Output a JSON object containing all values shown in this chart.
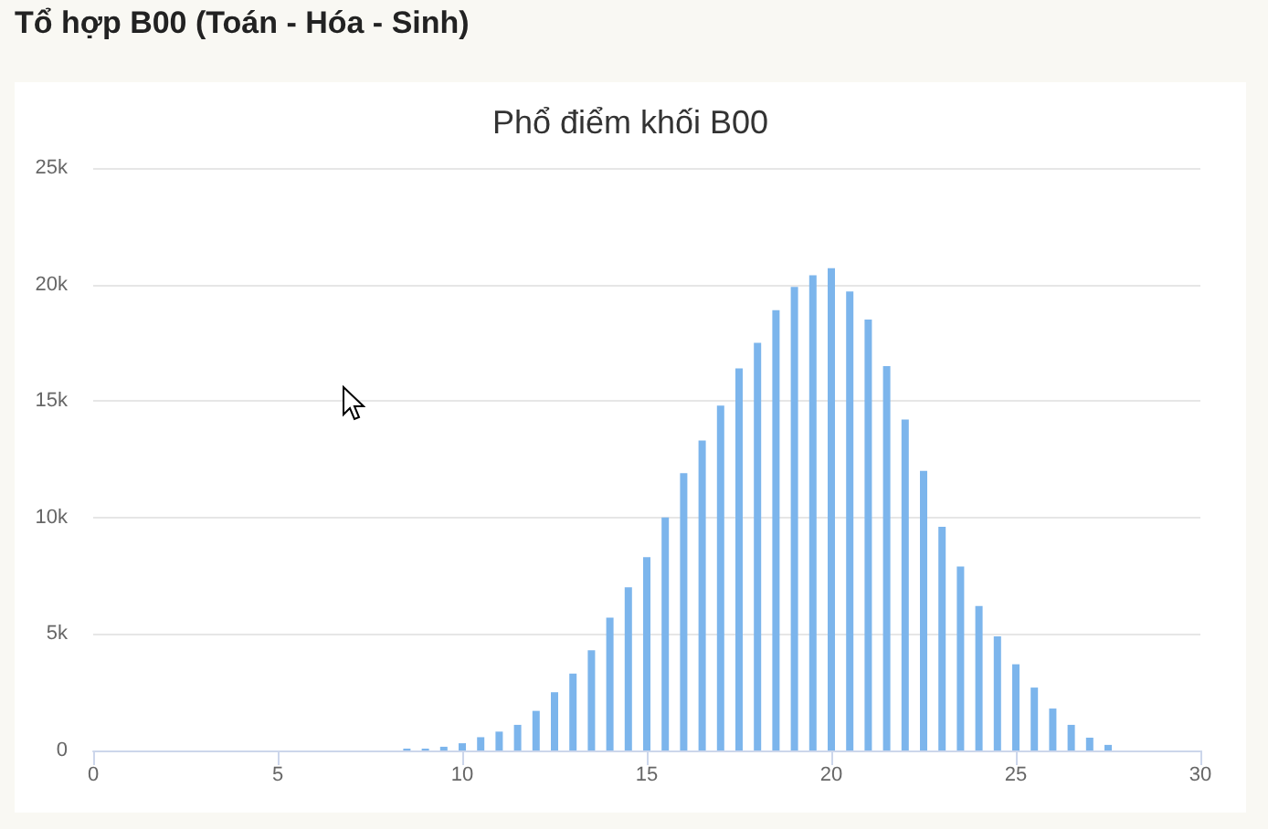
{
  "chart_data": {
    "type": "bar",
    "title": "Tổ hợp B00 (Toán - Hóa - Sinh)",
    "subtitle": "Phổ điểm khối B00",
    "x": [
      8.5,
      9,
      9.5,
      10,
      10.5,
      11,
      11.5,
      12,
      12.5,
      13,
      13.5,
      14,
      14.5,
      15,
      15.5,
      16,
      16.5,
      17,
      17.5,
      18,
      18.5,
      19,
      19.5,
      20,
      20.5,
      21,
      21.5,
      22,
      22.5,
      23,
      23.5,
      24,
      24.5,
      25,
      25.5,
      26,
      26.5,
      27,
      27.5
    ],
    "values": [
      80,
      80,
      160,
      310,
      570,
      810,
      1100,
      1700,
      2500,
      3300,
      4300,
      5700,
      7000,
      8300,
      10000,
      11900,
      13300,
      14800,
      16400,
      17500,
      18900,
      19900,
      20400,
      20700,
      19700,
      18500,
      16500,
      14200,
      12000,
      9600,
      7900,
      6200,
      4900,
      3700,
      2700,
      1800,
      1100,
      550,
      240
    ],
    "color": "#7cb5ec",
    "xlim": [
      0,
      30
    ],
    "xticks": [
      0,
      5,
      10,
      15,
      20,
      25,
      30
    ],
    "ylim": [
      0,
      25000
    ],
    "yticks": [
      0,
      {
        "value": 5000,
        "label": "5k"
      },
      {
        "value": 10000,
        "label": "10k"
      },
      {
        "value": 15000,
        "label": "15k"
      },
      {
        "value": 20000,
        "label": "20k"
      },
      {
        "value": 25000,
        "label": "25k"
      }
    ],
    "grid": "y"
  }
}
